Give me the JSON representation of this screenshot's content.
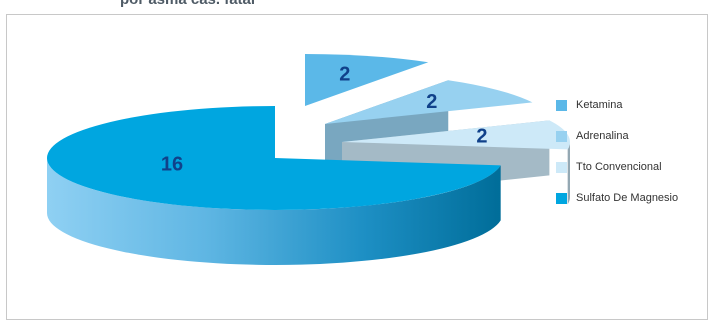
{
  "page": {
    "title": "por asma cas. fatal"
  },
  "chart_data": {
    "type": "pie",
    "style": "3d-exploded",
    "title": "",
    "slices": [
      {
        "name": "Ketamina",
        "value": 2,
        "color": "#5bb8e8"
      },
      {
        "name": "Adrenalina",
        "value": 2,
        "color": "#97d1f0"
      },
      {
        "name": "Tto Convencional",
        "value": 2,
        "color": "#cde9f8"
      },
      {
        "name": "Sulfato De Magnesio",
        "value": 16,
        "color": "#00a6e0"
      }
    ],
    "data_labels": [
      "2",
      "2",
      "2",
      "16"
    ],
    "legend": {
      "position": "right"
    }
  }
}
